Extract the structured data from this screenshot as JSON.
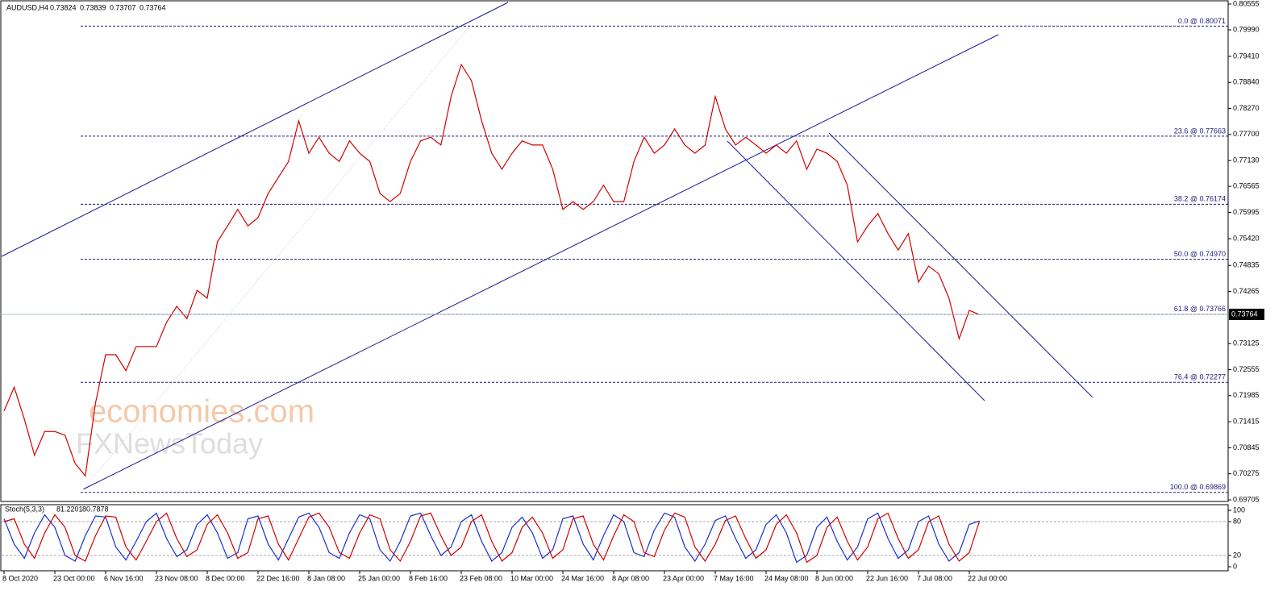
{
  "header": {
    "symbol": "AUDUSD,H4",
    "quote": [
      0.73824,
      0.73839,
      0.73707,
      0.73764
    ]
  },
  "watermark": [
    "economies.com",
    "FXNewsToday"
  ],
  "chart_data": [
    {
      "type": "line",
      "categories": [
        "8 Oct 2020",
        null,
        null,
        null,
        null,
        "23 Oct 00:00",
        null,
        null,
        null,
        null,
        "6 Nov 16:00",
        null,
        null,
        null,
        null,
        "23 Nov 08:00",
        null,
        null,
        null,
        null,
        "8 Dec 00:00",
        null,
        null,
        null,
        null,
        "22 Dec 16:00",
        null,
        null,
        null,
        null,
        "8 Jan 08:00",
        null,
        null,
        null,
        null,
        "25 Jan 00:00",
        null,
        null,
        null,
        null,
        "8 Feb 16:00",
        null,
        null,
        null,
        null,
        "23 Feb 08:00",
        null,
        null,
        null,
        null,
        "10 Mar 00:00",
        null,
        null,
        null,
        null,
        "24 Mar 16:00",
        null,
        null,
        null,
        null,
        "8 Apr 08:00",
        null,
        null,
        null,
        null,
        "23 Apr 00:00",
        null,
        null,
        null,
        null,
        "7 May 16:00",
        null,
        null,
        null,
        null,
        "24 May 08:00",
        null,
        null,
        null,
        null,
        "8 Jun 00:00",
        null,
        null,
        null,
        null,
        "22 Jun 16:00",
        null,
        null,
        null,
        null,
        "7 Jul 08:00",
        null,
        null,
        null,
        null,
        "22 Jul 00:00",
        null
      ],
      "series": [
        {
          "color": "#d40000",
          "values": [
            0.7165,
            0.7217,
            0.7147,
            0.7068,
            0.712,
            0.712,
            0.7112,
            0.705,
            0.7023,
            0.7182,
            0.7288,
            0.7288,
            0.7253,
            0.7306,
            0.7306,
            0.7306,
            0.7359,
            0.7394,
            0.7367,
            0.7429,
            0.7412,
            0.7535,
            0.757,
            0.7606,
            0.757,
            0.7588,
            0.7641,
            0.7676,
            0.7711,
            0.78,
            0.7729,
            0.7764,
            0.7729,
            0.7711,
            0.7756,
            0.7729,
            0.7711,
            0.7641,
            0.7623,
            0.7641,
            0.7711,
            0.7756,
            0.7764,
            0.7747,
            0.7853,
            0.7923,
            0.7888,
            0.78,
            0.7729,
            0.7694,
            0.7729,
            0.7756,
            0.7747,
            0.7747,
            0.7694,
            0.7606,
            0.7623,
            0.7606,
            0.7623,
            0.7659,
            0.7623,
            0.7623,
            0.7711,
            0.7764,
            0.7729,
            0.7747,
            0.7782,
            0.7747,
            0.7729,
            0.7747,
            0.7853,
            0.7782,
            0.7747,
            0.7764,
            0.7747,
            0.7729,
            0.7747,
            0.7729,
            0.7756,
            0.7694,
            0.7738,
            0.7729,
            0.7711,
            0.7659,
            0.7535,
            0.757,
            0.7597,
            0.7553,
            0.7517,
            0.7553,
            0.7447,
            0.7482,
            0.7465,
            0.7412,
            0.7323,
            0.7385,
            0.7376
          ]
        }
      ],
      "ylim": [
        0.69705,
        0.80555
      ],
      "yticks": [
        {
          "value": 0.80555,
          "label": "0.80555"
        },
        {
          "value": 0.7999,
          "label": "0.79990"
        },
        {
          "value": 0.7941,
          "label": "0.79410"
        },
        {
          "value": 0.7884,
          "label": "0.78840"
        },
        {
          "value": 0.7827,
          "label": "0.78270"
        },
        {
          "value": 0.777,
          "label": "0.77700"
        },
        {
          "value": 0.7713,
          "label": "0.77130"
        },
        {
          "value": 0.76565,
          "label": "0.76565"
        },
        {
          "value": 0.75995,
          "label": "0.75995"
        },
        {
          "value": 0.7542,
          "label": "0.75420"
        },
        {
          "value": 0.74835,
          "label": "0.74835"
        },
        {
          "value": 0.74265,
          "label": "0.74265"
        },
        {
          "value": 0.73125,
          "label": "0.73125"
        },
        {
          "value": 0.72555,
          "label": "0.72555"
        },
        {
          "value": 0.71985,
          "label": "0.71985"
        },
        {
          "value": 0.71415,
          "label": "0.71415"
        },
        {
          "value": 0.70845,
          "label": "0.70845"
        },
        {
          "value": 0.70275,
          "label": "0.70275"
        },
        {
          "value": 0.69705,
          "label": "0.69705"
        }
      ],
      "levels": [
        {
          "label": "0.0 @ 0.80071",
          "value": 0.80071
        },
        {
          "label": "23.6 @ 0.77663",
          "value": 0.77663
        },
        {
          "label": "38.2 @ 0.76174",
          "value": 0.76174
        },
        {
          "label": "50.0 @ 0.74970",
          "value": 0.7497
        },
        {
          "label": "61.8 @ 0.73766",
          "value": 0.73766
        },
        {
          "label": "76.4 @ 0.72277",
          "value": 0.72277
        },
        {
          "label": "100.0 @ 0.69869",
          "value": 0.69869
        }
      ],
      "level_color": "#1a1a7a"
    },
    {
      "type": "line",
      "title": "Stoch(5,3,3)",
      "series": [
        {
          "color": "#1a2fd0",
          "values": [
            85,
            40,
            15,
            60,
            92,
            70,
            20,
            10,
            55,
            90,
            88,
            35,
            12,
            45,
            80,
            95,
            50,
            18,
            30,
            75,
            92,
            60,
            15,
            25,
            85,
            90,
            40,
            12,
            50,
            88,
            95,
            70,
            25,
            15,
            60,
            92,
            85,
            30,
            10,
            45,
            90,
            95,
            55,
            20,
            35,
            80,
            92,
            45,
            10,
            25,
            70,
            88,
            60,
            15,
            30,
            85,
            90,
            40,
            12,
            55,
            92,
            80,
            25,
            18,
            65,
            95,
            88,
            35,
            10,
            40,
            82,
            90,
            50,
            15,
            30,
            75,
            92,
            60,
            8,
            20,
            70,
            88,
            45,
            12,
            35,
            85,
            95,
            50,
            15,
            30,
            80,
            90,
            40,
            10,
            25,
            75,
            81.2201
          ]
        },
        {
          "color": "#d40000",
          "values": [
            80,
            85,
            40,
            15,
            60,
            92,
            70,
            20,
            10,
            55,
            90,
            88,
            35,
            12,
            45,
            80,
            95,
            50,
            18,
            30,
            75,
            92,
            60,
            15,
            25,
            85,
            90,
            40,
            12,
            50,
            88,
            95,
            70,
            25,
            15,
            60,
            92,
            85,
            30,
            10,
            45,
            90,
            95,
            55,
            20,
            35,
            80,
            92,
            45,
            10,
            25,
            70,
            88,
            60,
            15,
            30,
            85,
            90,
            40,
            12,
            55,
            92,
            80,
            25,
            18,
            65,
            95,
            88,
            35,
            10,
            40,
            82,
            90,
            50,
            15,
            30,
            75,
            92,
            60,
            8,
            20,
            70,
            88,
            45,
            12,
            35,
            85,
            95,
            50,
            15,
            30,
            80,
            90,
            40,
            10,
            25,
            80.7878
          ]
        }
      ],
      "ylim": [
        0,
        100
      ],
      "yticks": [
        0,
        20,
        80,
        100
      ],
      "levels": [
        20,
        80
      ]
    }
  ]
}
